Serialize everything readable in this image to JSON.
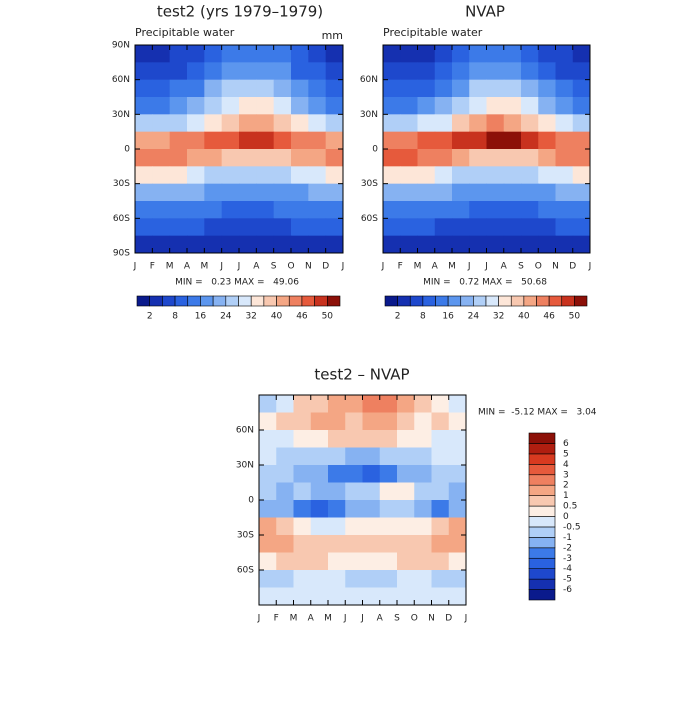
{
  "chart_data": [
    {
      "type": "heatmap",
      "title": "test2 (yrs 1979–1979)",
      "subtitle": "Precipitable water",
      "units": "mm",
      "x_edges": [
        "J",
        "F",
        "M",
        "A",
        "M",
        "J",
        "J",
        "A",
        "S",
        "O",
        "N",
        "D",
        "J"
      ],
      "y": [
        82.5,
        67.5,
        52.5,
        37.5,
        22.5,
        7.5,
        -7.5,
        -22.5,
        -37.5,
        -52.5,
        -67.5,
        -82.5
      ],
      "ylim": [
        -90,
        90
      ],
      "yticks": [
        {
          "value": 90,
          "label": "90N"
        },
        {
          "value": 60,
          "label": "60N"
        },
        {
          "value": 30,
          "label": "30N"
        },
        0,
        {
          "value": -30,
          "label": "30S"
        },
        {
          "value": -60,
          "label": "60S"
        },
        {
          "value": -90,
          "label": "90S"
        }
      ],
      "values": [
        [
          3,
          4,
          5,
          7,
          10,
          13,
          15,
          14,
          12,
          8,
          5,
          4
        ],
        [
          5,
          6,
          7,
          10,
          13,
          17,
          19,
          18,
          16,
          11,
          8,
          6
        ],
        [
          9,
          10,
          12,
          15,
          20,
          24,
          27,
          26,
          22,
          17,
          13,
          10
        ],
        [
          14,
          15,
          17,
          21,
          26,
          31,
          34,
          33,
          29,
          23,
          18,
          15
        ],
        [
          24,
          25,
          27,
          30,
          35,
          39,
          42,
          41,
          37,
          32,
          28,
          25
        ],
        [
          42,
          42,
          43,
          44,
          46,
          47,
          48,
          48,
          47,
          45,
          43,
          42
        ],
        [
          44,
          44,
          43,
          42,
          40,
          38,
          37,
          38,
          39,
          40,
          42,
          43
        ],
        [
          34,
          34,
          33,
          30,
          27,
          25,
          24,
          24,
          26,
          29,
          31,
          33
        ],
        [
          23,
          23,
          22,
          21,
          19,
          17,
          16,
          17,
          18,
          19,
          21,
          22
        ],
        [
          15,
          15,
          15,
          14,
          12,
          11,
          11,
          11,
          12,
          13,
          14,
          15
        ],
        [
          9,
          9,
          9,
          8,
          7,
          7,
          6,
          7,
          7,
          8,
          8,
          9
        ],
        [
          4,
          4,
          4,
          3,
          3,
          2,
          2,
          2,
          3,
          3,
          4,
          4
        ]
      ],
      "stats": "MIN =   0.23 MAX =   49.06",
      "colorbar": {
        "orientation": "horizontal",
        "ticks": [
          2,
          8,
          16,
          24,
          32,
          40,
          46,
          50
        ],
        "colors": [
          "#0a1a8c",
          "#1530b0",
          "#1e48cc",
          "#2a62e0",
          "#3c7ae8",
          "#5c96ee",
          "#86b2f2",
          "#b0cff7",
          "#d8e8fb",
          "#fde6d8",
          "#f8c8b0",
          "#f4a684",
          "#ee8060",
          "#e65a3c",
          "#c8321e",
          "#8c1008"
        ]
      }
    },
    {
      "type": "heatmap",
      "title": "NVAP",
      "subtitle": "Precipitable water",
      "x_edges": [
        "J",
        "F",
        "M",
        "A",
        "M",
        "J",
        "J",
        "A",
        "S",
        "O",
        "N",
        "D",
        "J"
      ],
      "y": [
        82.5,
        67.5,
        52.5,
        37.5,
        22.5,
        7.5,
        -7.5,
        -22.5,
        -37.5,
        -52.5,
        -67.5,
        -82.5
      ],
      "ylim": [
        -90,
        90
      ],
      "yticks": [
        {
          "value": 60,
          "label": "60N"
        },
        {
          "value": 30,
          "label": "30N"
        },
        0,
        {
          "value": -30,
          "label": "30S"
        },
        {
          "value": -60,
          "label": "60S"
        }
      ],
      "values": [
        [
          3,
          3,
          4,
          6,
          9,
          12,
          14,
          13,
          11,
          7,
          5,
          3
        ],
        [
          5,
          5,
          6,
          9,
          12,
          16,
          19,
          18,
          15,
          10,
          7,
          5
        ],
        [
          8,
          9,
          11,
          14,
          19,
          24,
          27,
          26,
          21,
          16,
          12,
          9
        ],
        [
          14,
          15,
          17,
          21,
          26,
          31,
          35,
          34,
          29,
          23,
          18,
          15
        ],
        [
          25,
          26,
          28,
          31,
          36,
          40,
          43,
          42,
          38,
          33,
          29,
          26
        ],
        [
          44,
          44,
          46,
          47,
          48,
          49,
          50,
          50,
          48,
          46,
          45,
          44
        ],
        [
          46,
          46,
          45,
          43,
          40,
          38,
          37,
          38,
          39,
          41,
          43,
          45
        ],
        [
          34,
          34,
          33,
          30,
          27,
          25,
          24,
          24,
          26,
          29,
          31,
          33
        ],
        [
          22,
          22,
          22,
          20,
          18,
          17,
          16,
          16,
          17,
          19,
          20,
          21
        ],
        [
          14,
          14,
          14,
          13,
          12,
          11,
          10,
          10,
          11,
          12,
          13,
          14
        ],
        [
          8,
          8,
          8,
          7,
          7,
          6,
          6,
          6,
          7,
          7,
          8,
          8
        ],
        [
          3,
          3,
          3,
          3,
          2,
          2,
          2,
          2,
          2,
          3,
          3,
          3
        ]
      ],
      "stats": "MIN =   0.72 MAX =   50.68",
      "colorbar": {
        "orientation": "horizontal",
        "ticks": [
          2,
          8,
          16,
          24,
          32,
          40,
          46,
          50
        ],
        "colors": [
          "#0a1a8c",
          "#1530b0",
          "#1e48cc",
          "#2a62e0",
          "#3c7ae8",
          "#5c96ee",
          "#86b2f2",
          "#b0cff7",
          "#d8e8fb",
          "#fde6d8",
          "#f8c8b0",
          "#f4a684",
          "#ee8060",
          "#e65a3c",
          "#c8321e",
          "#8c1008"
        ]
      }
    },
    {
      "type": "heatmap",
      "title": "test2 – NVAP",
      "x_edges": [
        "J",
        "F",
        "M",
        "A",
        "M",
        "J",
        "J",
        "A",
        "S",
        "O",
        "N",
        "D",
        "J"
      ],
      "y": [
        82.5,
        67.5,
        52.5,
        37.5,
        22.5,
        7.5,
        -7.5,
        -22.5,
        -37.5,
        -52.5,
        -67.5,
        -82.5
      ],
      "ylim": [
        -90,
        90
      ],
      "yticks": [
        {
          "value": 60,
          "label": "60N"
        },
        {
          "value": 30,
          "label": "30N"
        },
        0,
        {
          "value": -30,
          "label": "30S"
        },
        {
          "value": -60,
          "label": "60S"
        }
      ],
      "values": [
        [
          -1,
          -0.5,
          0.5,
          0.5,
          1,
          1,
          2,
          2,
          1,
          0.5,
          0,
          -0.5
        ],
        [
          0,
          0.5,
          0.5,
          1,
          1,
          0.5,
          1,
          1,
          0.5,
          0,
          0.5,
          0
        ],
        [
          -0.5,
          -0.5,
          0,
          0,
          0.5,
          0.5,
          0.5,
          0.5,
          0,
          0,
          -0.5,
          -0.5
        ],
        [
          -0.5,
          -1,
          -1,
          -1,
          -1,
          -2,
          -2,
          -1,
          -1,
          -1,
          -0.5,
          -0.5
        ],
        [
          -1,
          -1,
          -2,
          -2,
          -3,
          -3,
          -4,
          -3,
          -2,
          -2,
          -1,
          -1
        ],
        [
          -1,
          -2,
          -1,
          -2,
          -2,
          -1,
          -1,
          0,
          0,
          -1,
          -1,
          -2
        ],
        [
          -2,
          -2,
          -3,
          -4,
          -3,
          -2,
          -2,
          -1,
          -1,
          -2,
          -3,
          -2
        ],
        [
          1,
          0.5,
          0,
          -0.5,
          -0.5,
          0,
          0,
          0,
          0,
          0,
          0.5,
          1
        ],
        [
          1,
          1,
          0.5,
          0.5,
          0.5,
          0.5,
          0.5,
          0.5,
          0.5,
          0.5,
          1,
          1
        ],
        [
          0,
          0.5,
          0.5,
          0.5,
          0,
          0,
          0,
          0,
          0.5,
          0.5,
          0.5,
          0
        ],
        [
          -1,
          -1,
          -0.5,
          -0.5,
          -0.5,
          -1,
          -1,
          -1,
          -0.5,
          -0.5,
          -1,
          -1
        ],
        [
          -0.5,
          -0.5,
          -0.5,
          -0.5,
          -0.5,
          -0.5,
          -0.5,
          -0.5,
          -0.5,
          -0.5,
          -0.5,
          -0.5
        ]
      ],
      "stats": "MIN =  -5.12 MAX =   3.04",
      "colorbar": {
        "orientation": "vertical",
        "ticks": [
          -6,
          -5,
          -4,
          -3,
          -2,
          -1,
          -0.5,
          0,
          0.5,
          1,
          2,
          3,
          4,
          5,
          6
        ],
        "colors": [
          "#0a1a8c",
          "#1530b0",
          "#1e48cc",
          "#2a62e0",
          "#3c7ae8",
          "#86b2f2",
          "#b0cff7",
          "#d8e8fb",
          "#fdeee4",
          "#f8c8b0",
          "#f4a684",
          "#ee8060",
          "#e65a3c",
          "#d83a20",
          "#b01e10",
          "#8c1008"
        ]
      }
    }
  ]
}
